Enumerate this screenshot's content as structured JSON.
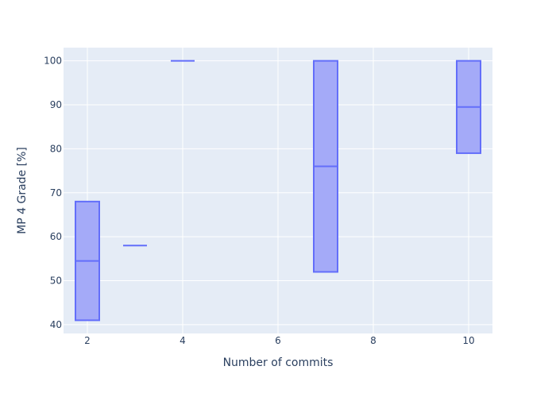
{
  "chart_data": {
    "type": "box",
    "xlabel": "Number of commits",
    "ylabel": "MP 4 Grade [%]",
    "xlim": [
      1.5,
      10.5
    ],
    "ylim": [
      38,
      103
    ],
    "xticks": [
      2,
      4,
      6,
      8,
      10
    ],
    "yticks": [
      40,
      50,
      60,
      70,
      80,
      90,
      100
    ],
    "grid": true,
    "colors": {
      "plot_bg": "#e5ecf6",
      "grid": "#ffffff",
      "box_fill": "#a4aaf8",
      "box_line": "#636efa",
      "text": "#2a3f5f"
    },
    "boxes": [
      {
        "x": 2,
        "q1": 41,
        "median": 54.5,
        "q3": 68
      },
      {
        "x": 3,
        "q1": 58,
        "median": 58,
        "q3": 58
      },
      {
        "x": 4,
        "q1": 100,
        "median": 100,
        "q3": 100
      },
      {
        "x": 7,
        "q1": 52,
        "median": 76,
        "q3": 100
      },
      {
        "x": 10,
        "q1": 79,
        "median": 89.5,
        "q3": 100
      }
    ]
  }
}
